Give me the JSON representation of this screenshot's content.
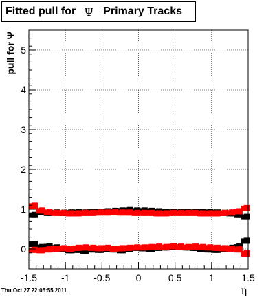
{
  "title": {
    "prefix": "Fitted pull for",
    "symbol": "Ψ",
    "suffix": "Primary Tracks"
  },
  "timestamp": "Thu Oct 27 22:05:55 2011",
  "chart_data": {
    "type": "scatter",
    "title": "Fitted pull for Ψ Primary Tracks",
    "xlabel": "η",
    "ylabel": "pull for Ψ",
    "xlim": [
      -1.5,
      1.5
    ],
    "ylim": [
      -0.5,
      5.5
    ],
    "x_ticks": [
      -1.5,
      -1,
      -0.5,
      0,
      0.5,
      1,
      1.5
    ],
    "x_tick_labels": [
      "-1.5",
      "-1",
      "-0.5",
      "0",
      "0.5",
      "1",
      "1.5"
    ],
    "y_ticks": [
      0,
      1,
      2,
      3,
      4,
      5
    ],
    "y_tick_labels": [
      "0",
      "1",
      "2",
      "3",
      "4",
      "5"
    ],
    "grid": true,
    "colors": {
      "black": "#000000",
      "red": "#ff0000"
    },
    "series": [
      {
        "color": "#000000",
        "role": "width",
        "x": [
          -1.45,
          -1.35,
          -1.25,
          -1.15,
          -1.05,
          -0.95,
          -0.85,
          -0.75,
          -0.65,
          -0.55,
          -0.45,
          -0.35,
          -0.25,
          -0.15,
          -0.05,
          0.05,
          0.15,
          0.25,
          0.35,
          0.45,
          0.55,
          0.65,
          0.75,
          0.85,
          0.95,
          1.05,
          1.15,
          1.25,
          1.35,
          1.45
        ],
        "values": [
          0.85,
          0.92,
          0.9,
          0.91,
          0.9,
          0.91,
          0.92,
          0.91,
          0.93,
          0.93,
          0.94,
          0.95,
          0.96,
          0.97,
          0.96,
          0.96,
          0.95,
          0.94,
          0.93,
          0.92,
          0.92,
          0.93,
          0.92,
          0.93,
          0.92,
          0.91,
          0.9,
          0.89,
          0.85,
          0.8
        ]
      },
      {
        "color": "#ff0000",
        "role": "width",
        "x": [
          -1.45,
          -1.35,
          -1.25,
          -1.15,
          -1.05,
          -0.95,
          -0.85,
          -0.75,
          -0.65,
          -0.55,
          -0.45,
          -0.35,
          -0.25,
          -0.15,
          -0.05,
          0.05,
          0.15,
          0.25,
          0.35,
          0.45,
          0.55,
          0.65,
          0.75,
          0.85,
          0.95,
          1.05,
          1.15,
          1.25,
          1.35,
          1.45
        ],
        "values": [
          1.08,
          0.96,
          0.92,
          0.9,
          0.9,
          0.89,
          0.89,
          0.9,
          0.9,
          0.91,
          0.91,
          0.92,
          0.91,
          0.91,
          0.9,
          0.9,
          0.9,
          0.89,
          0.89,
          0.9,
          0.9,
          0.9,
          0.9,
          0.89,
          0.89,
          0.89,
          0.9,
          0.91,
          0.94,
          1.02
        ]
      },
      {
        "color": "#000000",
        "role": "mean",
        "x": [
          -1.45,
          -1.35,
          -1.25,
          -1.15,
          -1.05,
          -0.95,
          -0.85,
          -0.75,
          -0.65,
          -0.55,
          -0.45,
          -0.35,
          -0.25,
          -0.15,
          -0.05,
          0.05,
          0.15,
          0.25,
          0.35,
          0.45,
          0.55,
          0.65,
          0.75,
          0.85,
          0.95,
          1.05,
          1.15,
          1.25,
          1.35,
          1.45
        ],
        "values": [
          0.12,
          0.04,
          0.06,
          0.03,
          0.0,
          -0.04,
          -0.03,
          -0.05,
          -0.02,
          -0.03,
          0.0,
          -0.02,
          -0.04,
          -0.01,
          0.02,
          0.01,
          0.0,
          0.02,
          0.03,
          0.05,
          0.04,
          0.03,
          0.02,
          0.0,
          -0.02,
          -0.03,
          -0.01,
          0.02,
          0.05,
          0.2
        ]
      },
      {
        "color": "#ff0000",
        "role": "mean",
        "x": [
          -1.45,
          -1.35,
          -1.25,
          -1.15,
          -1.05,
          -0.95,
          -0.85,
          -0.75,
          -0.65,
          -0.55,
          -0.45,
          -0.35,
          -0.25,
          -0.15,
          -0.05,
          0.05,
          0.15,
          0.25,
          0.35,
          0.45,
          0.55,
          0.65,
          0.75,
          0.85,
          0.95,
          1.05,
          1.15,
          1.25,
          1.35,
          1.45
        ],
        "values": [
          -0.03,
          -0.04,
          -0.02,
          0.0,
          0.01,
          0.0,
          0.02,
          0.03,
          0.02,
          0.01,
          0.02,
          0.0,
          0.01,
          0.02,
          0.03,
          0.03,
          0.04,
          0.05,
          0.04,
          0.06,
          0.05,
          0.04,
          0.05,
          0.04,
          0.03,
          0.02,
          0.01,
          0.0,
          -0.02,
          -0.12
        ]
      }
    ]
  }
}
